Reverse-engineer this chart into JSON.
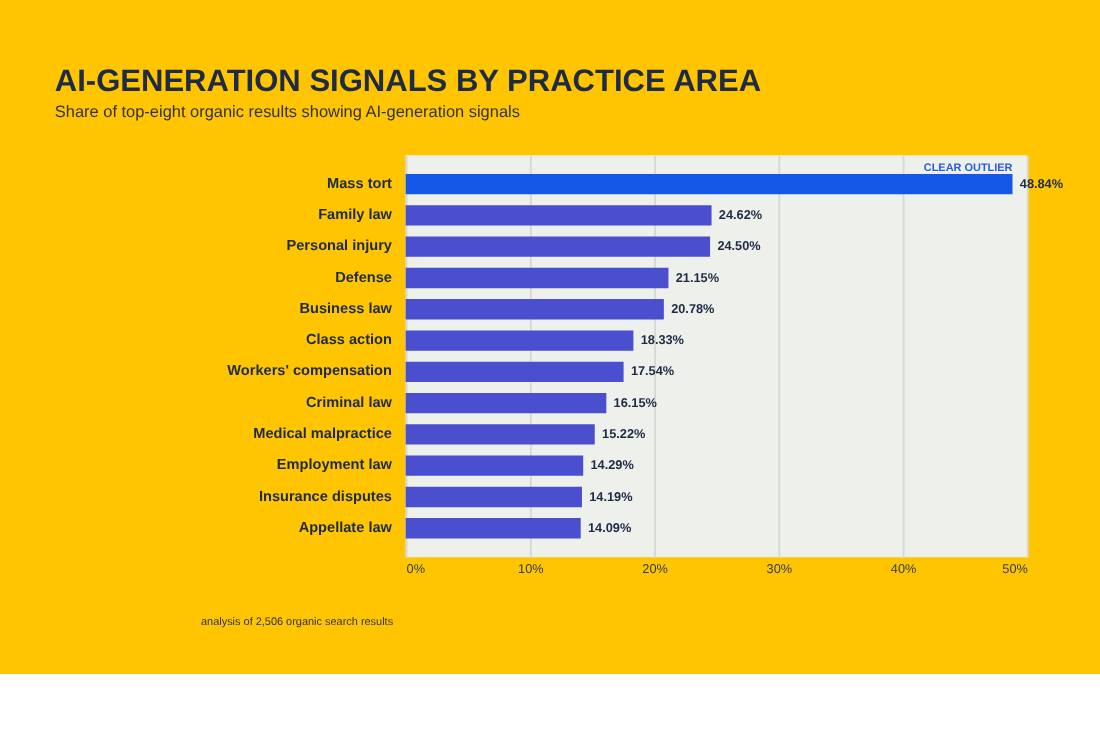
{
  "chart_data": {
    "type": "bar",
    "orientation": "horizontal",
    "title": "AI-GENERATION SIGNALS BY PRACTICE AREA",
    "subtitle": "Share of top-eight organic results showing AI-generation signals",
    "categories": [
      "Mass tort",
      "Family law",
      "Personal injury",
      "Defense",
      "Business law",
      "Class action",
      "Workers' compensation",
      "Criminal law",
      "Medical malpractice",
      "Employment law",
      "Insurance disputes",
      "Appellate law"
    ],
    "values": [
      48.84,
      24.62,
      24.5,
      21.15,
      20.78,
      18.33,
      17.54,
      16.15,
      15.22,
      14.29,
      14.19,
      14.09
    ],
    "value_labels": [
      "48.84%",
      "24.62%",
      "24.50%",
      "21.15%",
      "20.78%",
      "18.33%",
      "17.54%",
      "16.15%",
      "15.22%",
      "14.29%",
      "14.19%",
      "14.09%"
    ],
    "colors": [
      "#1557e6",
      "#4a4fcf",
      "#4a4fcf",
      "#4a4fcf",
      "#4a4fcf",
      "#4a4fcf",
      "#4a4fcf",
      "#4a4fcf",
      "#4a4fcf",
      "#4a4fcf",
      "#4a4fcf",
      "#4a4fcf"
    ],
    "xlim": [
      0,
      50
    ],
    "xticks": [
      {
        "value": 0,
        "label": "0%"
      },
      {
        "value": 10,
        "label": "10%"
      },
      {
        "value": 20,
        "label": "20%"
      },
      {
        "value": 30,
        "label": "30%"
      },
      {
        "value": 40,
        "label": "40%"
      },
      {
        "value": 50,
        "label": "50%"
      }
    ],
    "grid": "x",
    "legend": false,
    "annotations": [
      {
        "text": "CLEAR OUTLIER",
        "x": 48.84,
        "y": "Mass tort"
      },
      "analysis of 2,506 organic search results"
    ]
  }
}
